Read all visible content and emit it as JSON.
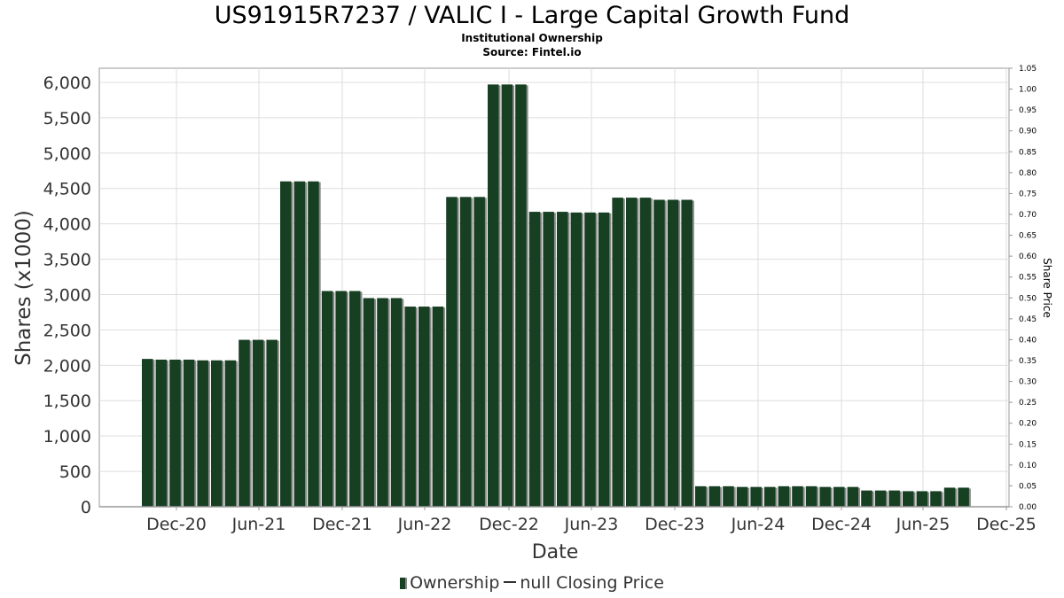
{
  "title": "US91915R7237 / VALIC I - Large Capital Growth Fund",
  "subtitle": "Institutional Ownership",
  "source": "Source: Fintel.io",
  "legend": {
    "ownership": "Ownership",
    "price": "null Closing Price"
  },
  "colors": {
    "bar": "#173f22",
    "bar_shadow": "#8c8c8c",
    "grid": "#dddddd",
    "axis": "#999999"
  },
  "chart_data": {
    "type": "bar",
    "xlabel": "Date",
    "ylabel": "Shares (x1000)",
    "y2label": "Share Price",
    "ylim": [
      0,
      6200
    ],
    "y2lim": [
      0,
      1.05
    ],
    "grid": true,
    "legend_position": "bottom",
    "yticks": [
      "0",
      "500",
      "1,000",
      "1,500",
      "2,000",
      "2,500",
      "3,000",
      "3,500",
      "4,000",
      "4,500",
      "5,000",
      "5,500",
      "6,000"
    ],
    "y2ticks": [
      "0.00",
      "0.05",
      "0.10",
      "0.15",
      "0.20",
      "0.25",
      "0.30",
      "0.35",
      "0.40",
      "0.45",
      "0.50",
      "0.55",
      "0.60",
      "0.65",
      "0.70",
      "0.75",
      "0.80",
      "0.85",
      "0.90",
      "0.95",
      "1.00",
      "1.05"
    ],
    "xticks": [
      "Dec-20",
      "Jun-21",
      "Dec-21",
      "Jun-22",
      "Dec-22",
      "Jun-23",
      "Dec-23",
      "Jun-24",
      "Dec-24",
      "Jun-25",
      "Dec-25"
    ],
    "series": [
      {
        "name": "Ownership",
        "values": [
          2090,
          2080,
          2080,
          2080,
          2070,
          2070,
          2070,
          2360,
          2360,
          2360,
          4600,
          4600,
          4600,
          3050,
          3050,
          3050,
          2950,
          2950,
          2950,
          2830,
          2830,
          2830,
          4380,
          4380,
          4380,
          5970,
          5970,
          5970,
          4170,
          4170,
          4170,
          4160,
          4160,
          4160,
          4370,
          4370,
          4370,
          4340,
          4340,
          4340,
          290,
          290,
          290,
          280,
          280,
          280,
          290,
          290,
          290,
          280,
          280,
          280,
          230,
          230,
          230,
          220,
          220,
          220,
          270,
          270
        ]
      }
    ]
  }
}
